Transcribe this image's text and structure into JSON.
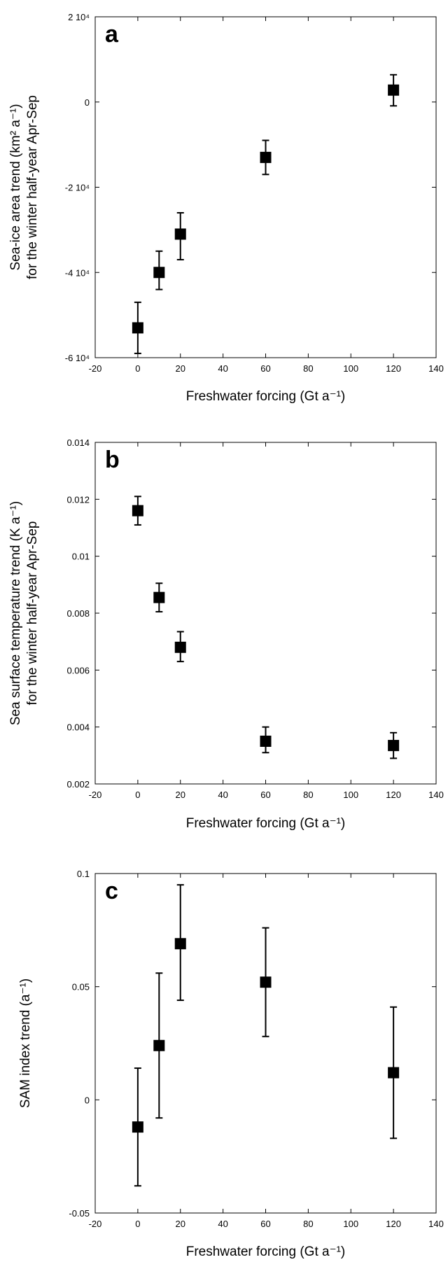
{
  "chart_data": [
    {
      "type": "scatter",
      "panel_label": "a",
      "x": [
        0,
        10,
        20,
        60,
        120
      ],
      "y": [
        -53000,
        -40000,
        -31000,
        -13000,
        2800
      ],
      "err_low": [
        -59000,
        -44000,
        -37000,
        -17000,
        -900
      ],
      "err_high": [
        -47000,
        -35000,
        -26000,
        -9000,
        6400
      ],
      "xlim": [
        -20,
        140
      ],
      "ylim": [
        -60000,
        20000
      ],
      "xticks": [
        -20,
        0,
        20,
        40,
        60,
        80,
        100,
        120,
        140
      ],
      "yticks": [
        -60000,
        -40000,
        -20000,
        0,
        20000
      ],
      "ytick_labels": [
        "-6 10⁴",
        "-4 10⁴",
        "-2 10⁴",
        "0",
        "2 10⁴"
      ],
      "xlabel": "Freshwater forcing (Gt a⁻¹)",
      "ylabel_line1": "Sea-ice area trend (km² a⁻¹)",
      "ylabel_line2": "for the winter half-year Apr-Sep"
    },
    {
      "type": "scatter",
      "panel_label": "b",
      "x": [
        0,
        10,
        20,
        60,
        120
      ],
      "y": [
        0.0116,
        0.00855,
        0.0068,
        0.0035,
        0.00335
      ],
      "err_low": [
        0.0111,
        0.00805,
        0.0063,
        0.0031,
        0.0029
      ],
      "err_high": [
        0.0121,
        0.00905,
        0.00735,
        0.004,
        0.0038
      ],
      "xlim": [
        -20,
        140
      ],
      "ylim": [
        0.002,
        0.014
      ],
      "xticks": [
        -20,
        0,
        20,
        40,
        60,
        80,
        100,
        120,
        140
      ],
      "yticks": [
        0.002,
        0.004,
        0.006,
        0.008,
        0.01,
        0.012,
        0.014
      ],
      "ytick_labels": [
        "0.002",
        "0.004",
        "0.006",
        "0.008",
        "0.01",
        "0.012",
        "0.014"
      ],
      "xlabel": "Freshwater forcing (Gt a⁻¹)",
      "ylabel_line1": "Sea surface temperature trend (K a⁻¹)",
      "ylabel_line2": "for the winter half-year Apr-Sep"
    },
    {
      "type": "scatter",
      "panel_label": "c",
      "x": [
        0,
        10,
        20,
        60,
        120
      ],
      "y": [
        -0.012,
        0.024,
        0.069,
        0.052,
        0.012
      ],
      "err_low": [
        -0.038,
        -0.008,
        0.044,
        0.028,
        -0.017
      ],
      "err_high": [
        0.014,
        0.056,
        0.095,
        0.076,
        0.041
      ],
      "xlim": [
        -20,
        140
      ],
      "ylim": [
        -0.05,
        0.1
      ],
      "xticks": [
        -20,
        0,
        20,
        40,
        60,
        80,
        100,
        120,
        140
      ],
      "yticks": [
        -0.05,
        0,
        0.05,
        0.1
      ],
      "ytick_labels": [
        "-0.05",
        "0",
        "0.05",
        "0.1"
      ],
      "xlabel": "Freshwater forcing (Gt a⁻¹)",
      "ylabel_line1": "SAM index trend (a⁻¹)",
      "ylabel_line2": ""
    }
  ]
}
